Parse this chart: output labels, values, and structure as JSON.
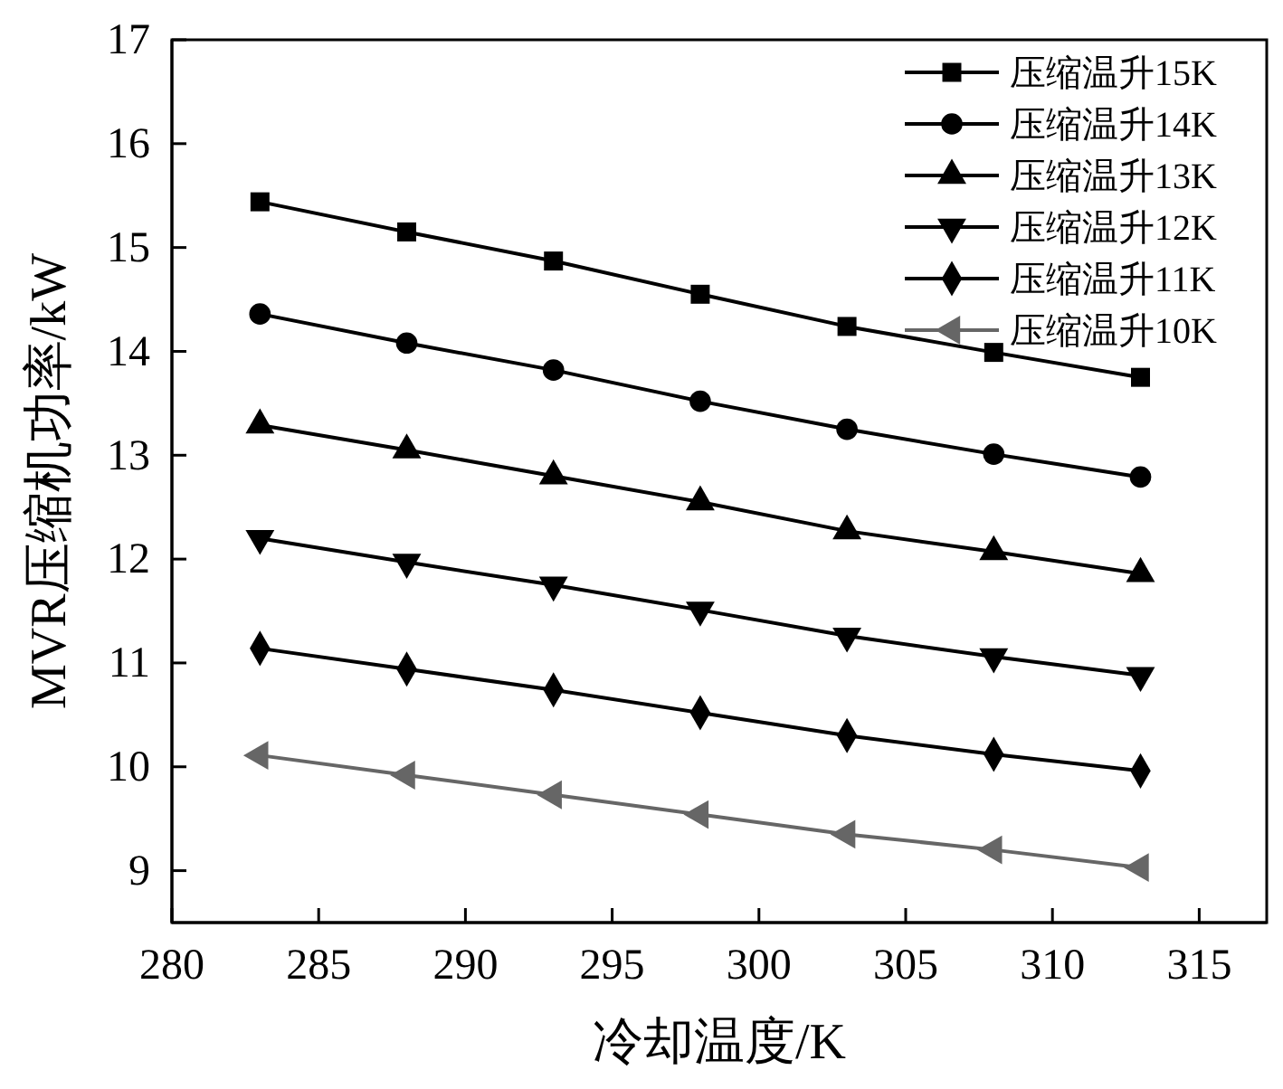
{
  "chart_data": {
    "type": "line",
    "xlabel": "冷却温度/K",
    "ylabel": "MVR压缩机功率/kW",
    "x": [
      283,
      288,
      293,
      298,
      303,
      308,
      313
    ],
    "xlim": [
      280,
      317.3
    ],
    "xticks": [
      280,
      285,
      290,
      295,
      300,
      305,
      310,
      315
    ],
    "ylim": [
      8.5,
      17
    ],
    "yticks": [
      9,
      10,
      11,
      12,
      13,
      14,
      15,
      16,
      17
    ],
    "grid": false,
    "legend": "top right",
    "line_style": "solid",
    "series": [
      {
        "name": "压缩温升15K",
        "color": "#000000",
        "marker": "square",
        "values": [
          15.44,
          15.15,
          14.87,
          14.55,
          14.24,
          13.99,
          13.75
        ]
      },
      {
        "name": "压缩温升14K",
        "color": "#000000",
        "marker": "circle",
        "values": [
          14.36,
          14.08,
          13.82,
          13.52,
          13.25,
          13.01,
          12.79
        ]
      },
      {
        "name": "压缩温升13K",
        "color": "#000000",
        "marker": "triangle",
        "values": [
          13.29,
          13.05,
          12.8,
          12.55,
          12.27,
          12.07,
          11.86
        ]
      },
      {
        "name": "压缩温升12K",
        "color": "#000000",
        "marker": "triangle-down",
        "values": [
          12.2,
          11.97,
          11.75,
          11.51,
          11.26,
          11.06,
          10.88
        ]
      },
      {
        "name": "压缩温升11K",
        "color": "#000000",
        "marker": "diamond",
        "values": [
          11.14,
          10.94,
          10.74,
          10.52,
          10.3,
          10.12,
          9.96
        ]
      },
      {
        "name": "压缩温升10K",
        "color": "#666666",
        "marker": "triangle-left",
        "values": [
          10.11,
          9.92,
          9.73,
          9.54,
          9.35,
          9.2,
          9.03
        ]
      }
    ]
  }
}
